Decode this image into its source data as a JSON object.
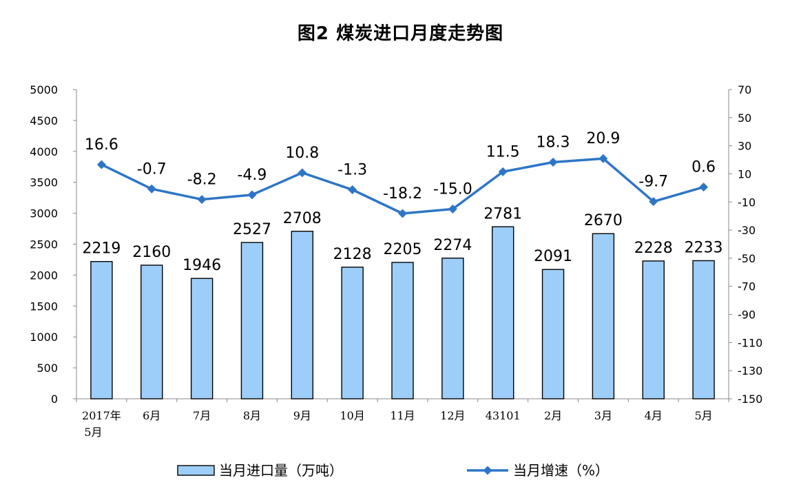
{
  "chart_data": {
    "type": "bar",
    "title": "图2  煤炭进口月度走势图",
    "categories": [
      [
        "2017年",
        "5月"
      ],
      [
        "6月"
      ],
      [
        "7月"
      ],
      [
        "8月"
      ],
      [
        "9月"
      ],
      [
        "10月"
      ],
      [
        "11月"
      ],
      [
        "12月"
      ],
      [
        "43101"
      ],
      [
        "2月"
      ],
      [
        "3月"
      ],
      [
        "4月"
      ],
      [
        "5月"
      ]
    ],
    "series": [
      {
        "name": "当月进口量（万吨）",
        "type": "bar",
        "axis": "left",
        "color": "#9DCEF9",
        "border": "#000000",
        "values": [
          2219,
          2160,
          1946,
          2527,
          2708,
          2128,
          2205,
          2274,
          2781,
          2091,
          2670,
          2228,
          2233
        ]
      },
      {
        "name": "当月增速（%）",
        "type": "line",
        "axis": "right",
        "color": "#2E75C6",
        "values": [
          16.6,
          -0.7,
          -8.2,
          -4.9,
          10.8,
          -1.3,
          -18.2,
          -15.0,
          11.5,
          18.3,
          20.9,
          -9.7,
          0.6
        ]
      }
    ],
    "left_axis": {
      "min": 0,
      "max": 5000,
      "ticks": [
        "0",
        "500",
        "1000",
        "1500",
        "2000",
        "2500",
        "3000",
        "3500",
        "4000",
        "4500",
        "5000"
      ]
    },
    "right_axis": {
      "min": -150,
      "max": 70,
      "ticks": [
        "-150",
        "-130",
        "-110",
        "-90",
        "-70",
        "-50",
        "-30",
        "-10",
        "10",
        "30",
        "50",
        "70"
      ]
    },
    "bar_labels": [
      "2219",
      "2160",
      "1946",
      "2527",
      "2708",
      "2128",
      "2205",
      "2274",
      "2781",
      "2091",
      "2670",
      "2228",
      "2233"
    ],
    "line_labels": [
      "16.6",
      "-0.7",
      "-8.2",
      "-4.9",
      "10.8",
      "-1.3",
      "-18.2",
      "-15.0",
      "11.5",
      "18.3",
      "20.9",
      "-9.7",
      "0.6"
    ],
    "legend": {
      "position": "bottom",
      "items": [
        "当月进口量（万吨）",
        "当月增速（%）"
      ]
    },
    "grid": false
  }
}
